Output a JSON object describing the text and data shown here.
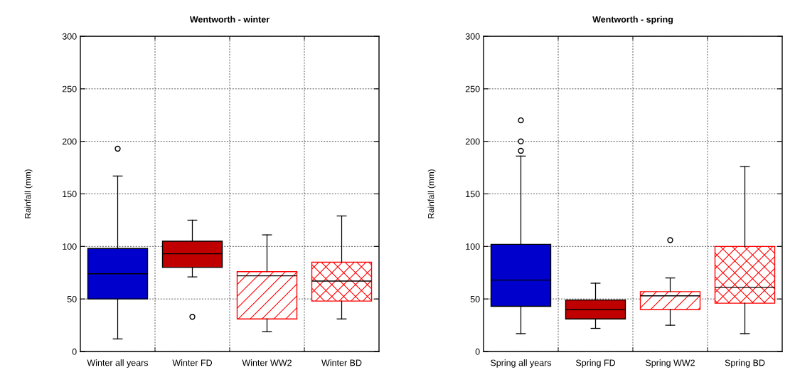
{
  "chart_data": [
    {
      "type": "box",
      "title": "Wentworth - winter",
      "ylabel": "Rainfall (mm)",
      "categories": [
        "Winter all years",
        "Winter FD",
        "Winter WW2",
        "Winter BD"
      ],
      "boxes": [
        {
          "low": 12,
          "q1": 50,
          "median": 74,
          "q3": 98,
          "high": 167,
          "outliers": [
            193
          ]
        },
        {
          "low": 71,
          "q1": 80,
          "median": 93,
          "q3": 105,
          "high": 125,
          "outliers": [
            33
          ]
        },
        {
          "low": 19,
          "q1": 31,
          "median": 72,
          "q3": 76,
          "high": 111
        },
        {
          "low": 31,
          "q1": 48,
          "median": 67,
          "q3": 85,
          "high": 129
        }
      ],
      "colors": [
        "#0000cc",
        "#c00000",
        "#ff0000",
        "#ff0000"
      ],
      "ylim": [
        0,
        300
      ],
      "yticks": [
        0,
        50,
        100,
        150,
        200,
        250,
        300
      ],
      "grid": true
    },
    {
      "type": "box",
      "title": "Wentworth - spring",
      "ylabel": "Rainfall (mm)",
      "categories": [
        "Spring all years",
        "Spring FD",
        "Spring WW2",
        "Spring BD"
      ],
      "boxes": [
        {
          "low": 17,
          "q1": 43,
          "median": 68,
          "q3": 102,
          "high": 186,
          "outliers": [
            191,
            200,
            220
          ]
        },
        {
          "low": 22,
          "q1": 31,
          "median": 40,
          "q3": 49,
          "high": 65
        },
        {
          "low": 25,
          "q1": 40,
          "median": 53,
          "q3": 57,
          "high": 70,
          "outliers": [
            106
          ]
        },
        {
          "low": 17,
          "q1": 46,
          "median": 61,
          "q3": 100,
          "high": 176
        }
      ],
      "colors": [
        "#0000cc",
        "#c00000",
        "#ff0000",
        "#ff0000"
      ],
      "ylim": [
        0,
        300
      ],
      "yticks": [
        0,
        50,
        100,
        150,
        200,
        250,
        300
      ],
      "grid": true
    }
  ]
}
